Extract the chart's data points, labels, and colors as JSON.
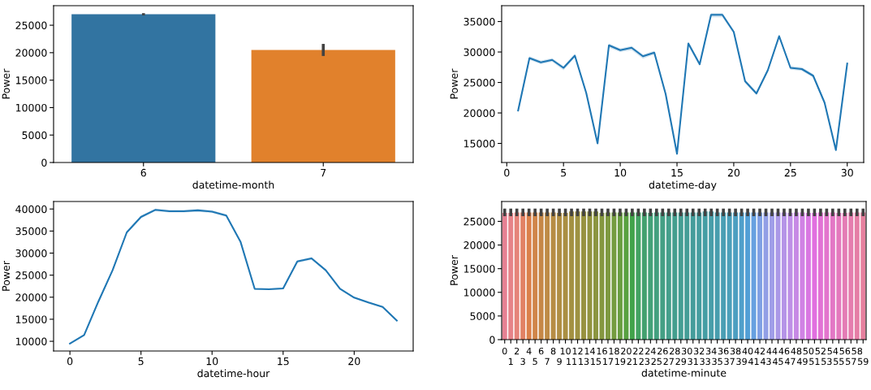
{
  "chart_data": [
    {
      "type": "bar",
      "xlabel": "datetime-month",
      "ylabel": "Power",
      "categories": [
        "6",
        "7"
      ],
      "values": [
        27000,
        20500
      ],
      "colors": [
        "#3274a1",
        "#e1812c"
      ],
      "errors": [
        [
          26800,
          27200
        ],
        [
          19400,
          21600
        ]
      ],
      "ylim": [
        0,
        28560
      ],
      "yticks": [
        0,
        5000,
        10000,
        15000,
        20000,
        25000
      ]
    },
    {
      "type": "line",
      "xlabel": "datetime-day",
      "ylabel": "Power",
      "x": [
        1,
        2,
        3,
        4,
        5,
        6,
        7,
        8,
        9,
        10,
        11,
        12,
        13,
        14,
        15,
        16,
        17,
        18,
        19,
        20,
        21,
        22,
        23,
        24,
        25,
        26,
        27,
        28,
        29,
        30
      ],
      "series": [
        {
          "color": "#1f77b4",
          "values": [
            20400,
            29000,
            28300,
            28700,
            27400,
            29400,
            23300,
            15000,
            31100,
            30300,
            30700,
            29300,
            29900,
            23100,
            13300,
            31400,
            28000,
            36100,
            36100,
            33300,
            25200,
            23200,
            27000,
            32600,
            27400,
            27200,
            26100,
            21700,
            13900,
            28100
          ],
          "lower": [
            19900,
            28700,
            28000,
            28400,
            27000,
            29100,
            23000,
            14800,
            30700,
            30000,
            30300,
            28900,
            29600,
            22800,
            13100,
            31000,
            27600,
            35700,
            35700,
            33000,
            24900,
            22900,
            26700,
            32300,
            27100,
            26900,
            25800,
            21400,
            13700,
            27800
          ],
          "upper": [
            20700,
            29300,
            28600,
            29000,
            27700,
            29700,
            23600,
            15200,
            31400,
            30600,
            31000,
            29600,
            30200,
            23400,
            13500,
            31700,
            28300,
            36400,
            36400,
            33600,
            25500,
            23500,
            27300,
            32900,
            27700,
            27500,
            26400,
            22000,
            14100,
            28400
          ]
        }
      ],
      "xlim": [
        -0.45,
        31.45
      ],
      "xticks": [
        0,
        5,
        10,
        15,
        20,
        25,
        30
      ],
      "ylim": [
        11870,
        37600
      ],
      "yticks": [
        15000,
        20000,
        25000,
        30000,
        35000
      ]
    },
    {
      "type": "line",
      "xlabel": "datetime-hour",
      "ylabel": "Power",
      "x": [
        0,
        1,
        2,
        3,
        4,
        5,
        6,
        7,
        8,
        9,
        10,
        11,
        12,
        13,
        14,
        15,
        16,
        17,
        18,
        19,
        20,
        21,
        22,
        23
      ],
      "series": [
        {
          "color": "#1f77b4",
          "values": [
            9500,
            11400,
            19000,
            26100,
            34700,
            38200,
            39800,
            39500,
            39500,
            39700,
            39400,
            38500,
            32600,
            21900,
            21800,
            22000,
            28100,
            28800,
            26100,
            21900,
            19900,
            18800,
            17800,
            14700
          ],
          "lower": [
            9300,
            11200,
            18700,
            25800,
            34400,
            37900,
            39500,
            39200,
            39200,
            39400,
            39100,
            38200,
            32300,
            21600,
            21600,
            21800,
            27800,
            28500,
            25900,
            21700,
            19700,
            18600,
            17600,
            14500
          ],
          "upper": [
            9700,
            11600,
            19300,
            26400,
            35000,
            38500,
            40100,
            39800,
            39800,
            40000,
            39700,
            38800,
            32900,
            22100,
            22000,
            22200,
            28400,
            29100,
            26300,
            22100,
            20100,
            19000,
            18000,
            14900
          ]
        }
      ],
      "xlim": [
        -1.15,
        24.15
      ],
      "xticks": [
        0,
        5,
        10,
        15,
        20
      ],
      "ylim": [
        7800,
        41700
      ],
      "yticks": [
        10000,
        15000,
        20000,
        25000,
        30000,
        35000,
        40000
      ]
    },
    {
      "type": "bar",
      "xlabel": "datetime-minute",
      "ylabel": "Power",
      "categories": [
        "0",
        "1",
        "2",
        "3",
        "4",
        "5",
        "6",
        "7",
        "8",
        "9",
        "10",
        "11",
        "12",
        "13",
        "14",
        "15",
        "16",
        "17",
        "18",
        "19",
        "20",
        "21",
        "22",
        "23",
        "24",
        "25",
        "26",
        "27",
        "28",
        "29",
        "30",
        "31",
        "32",
        "33",
        "34",
        "35",
        "36",
        "37",
        "38",
        "39",
        "40",
        "41",
        "42",
        "43",
        "44",
        "45",
        "46",
        "47",
        "48",
        "49",
        "50",
        "51",
        "52",
        "53",
        "54",
        "55",
        "56",
        "57",
        "58",
        "59"
      ],
      "values": [
        26800,
        26800,
        26900,
        26900,
        26900,
        26900,
        26900,
        26900,
        26900,
        26800,
        26800,
        27100,
        27100,
        27100,
        27100,
        27100,
        26800,
        26900,
        26900,
        26900,
        26900,
        26900,
        26900,
        26900,
        26800,
        26900,
        26900,
        26900,
        26900,
        26900,
        26900,
        26900,
        26900,
        27100,
        27100,
        26900,
        26900,
        26900,
        26900,
        26900,
        26900,
        26900,
        26900,
        26900,
        26900,
        26900,
        26900,
        26800,
        26900,
        26900,
        26800,
        26800,
        26900,
        26900,
        26900,
        26800,
        26800,
        26900,
        26900,
        26900
      ],
      "errors": [
        [
          26100,
          27700
        ],
        [
          26100,
          27700
        ],
        [
          26100,
          27700
        ],
        [
          26100,
          27700
        ],
        [
          26100,
          27700
        ],
        [
          26100,
          27700
        ],
        [
          26100,
          27700
        ],
        [
          26100,
          27700
        ],
        [
          26100,
          27700
        ],
        [
          26100,
          27700
        ],
        [
          26100,
          27700
        ],
        [
          26100,
          27700
        ],
        [
          26100,
          27700
        ],
        [
          26100,
          27700
        ],
        [
          26100,
          27700
        ],
        [
          26100,
          27700
        ],
        [
          26100,
          27700
        ],
        [
          26100,
          27700
        ],
        [
          26100,
          27700
        ],
        [
          26100,
          27700
        ],
        [
          26100,
          27700
        ],
        [
          26100,
          27700
        ],
        [
          26100,
          27700
        ],
        [
          26100,
          27700
        ],
        [
          26100,
          27700
        ],
        [
          26100,
          27700
        ],
        [
          26100,
          27700
        ],
        [
          26100,
          27700
        ],
        [
          26100,
          27700
        ],
        [
          26100,
          27700
        ],
        [
          26100,
          27700
        ],
        [
          26100,
          27700
        ],
        [
          26100,
          27700
        ],
        [
          26100,
          27700
        ],
        [
          26100,
          27700
        ],
        [
          26100,
          27700
        ],
        [
          26100,
          27700
        ],
        [
          26100,
          27700
        ],
        [
          26100,
          27700
        ],
        [
          26100,
          27700
        ],
        [
          26100,
          27700
        ],
        [
          26100,
          27700
        ],
        [
          26100,
          27700
        ],
        [
          26100,
          27700
        ],
        [
          26100,
          27700
        ],
        [
          26100,
          27700
        ],
        [
          26100,
          27700
        ],
        [
          26100,
          27700
        ],
        [
          26100,
          27700
        ],
        [
          26100,
          27700
        ],
        [
          26100,
          27700
        ],
        [
          26100,
          27700
        ],
        [
          26100,
          27700
        ],
        [
          26100,
          27700
        ],
        [
          26100,
          27700
        ],
        [
          26100,
          27700
        ],
        [
          26100,
          27700
        ],
        [
          26100,
          27700
        ],
        [
          26100,
          27700
        ],
        [
          26100,
          27700
        ]
      ],
      "colors": [
        "#e68193",
        "#e68389",
        "#e5837a",
        "#e28164",
        "#db804a",
        "#d08549",
        "#c68847",
        "#be8b46",
        "#b78d45",
        "#b08e44",
        "#aa8f43",
        "#a49142",
        "#9e9241",
        "#989240",
        "#92933f",
        "#8c9540",
        "#859740",
        "#7e9940",
        "#759c40",
        "#699e41",
        "#58a141",
        "#41a34b",
        "#42a262",
        "#43a16f",
        "#43a178",
        "#43a07f",
        "#44a085",
        "#449f8b",
        "#449f8f",
        "#449e93",
        "#459e97",
        "#459d9b",
        "#459d9f",
        "#469ea4",
        "#479ea9",
        "#489eae",
        "#4a9eb4",
        "#4b9fba",
        "#4d9fc1",
        "#4f9fca",
        "#529fd6",
        "#66a0e0",
        "#7fa0e4",
        "#929fe6",
        "#a09ee8",
        "#ab99e7",
        "#b594e7",
        "#be8fe6",
        "#c789e5",
        "#d082e4",
        "#d978e2",
        "#e16fdf",
        "#e272d5",
        "#e375cd",
        "#e377c5",
        "#e479bd",
        "#e47bb5",
        "#e57dae",
        "#e57ea6",
        "#e6809e"
      ],
      "ylim": [
        0,
        29200
      ],
      "yticks": [
        0,
        5000,
        10000,
        15000,
        20000,
        25000
      ]
    }
  ]
}
